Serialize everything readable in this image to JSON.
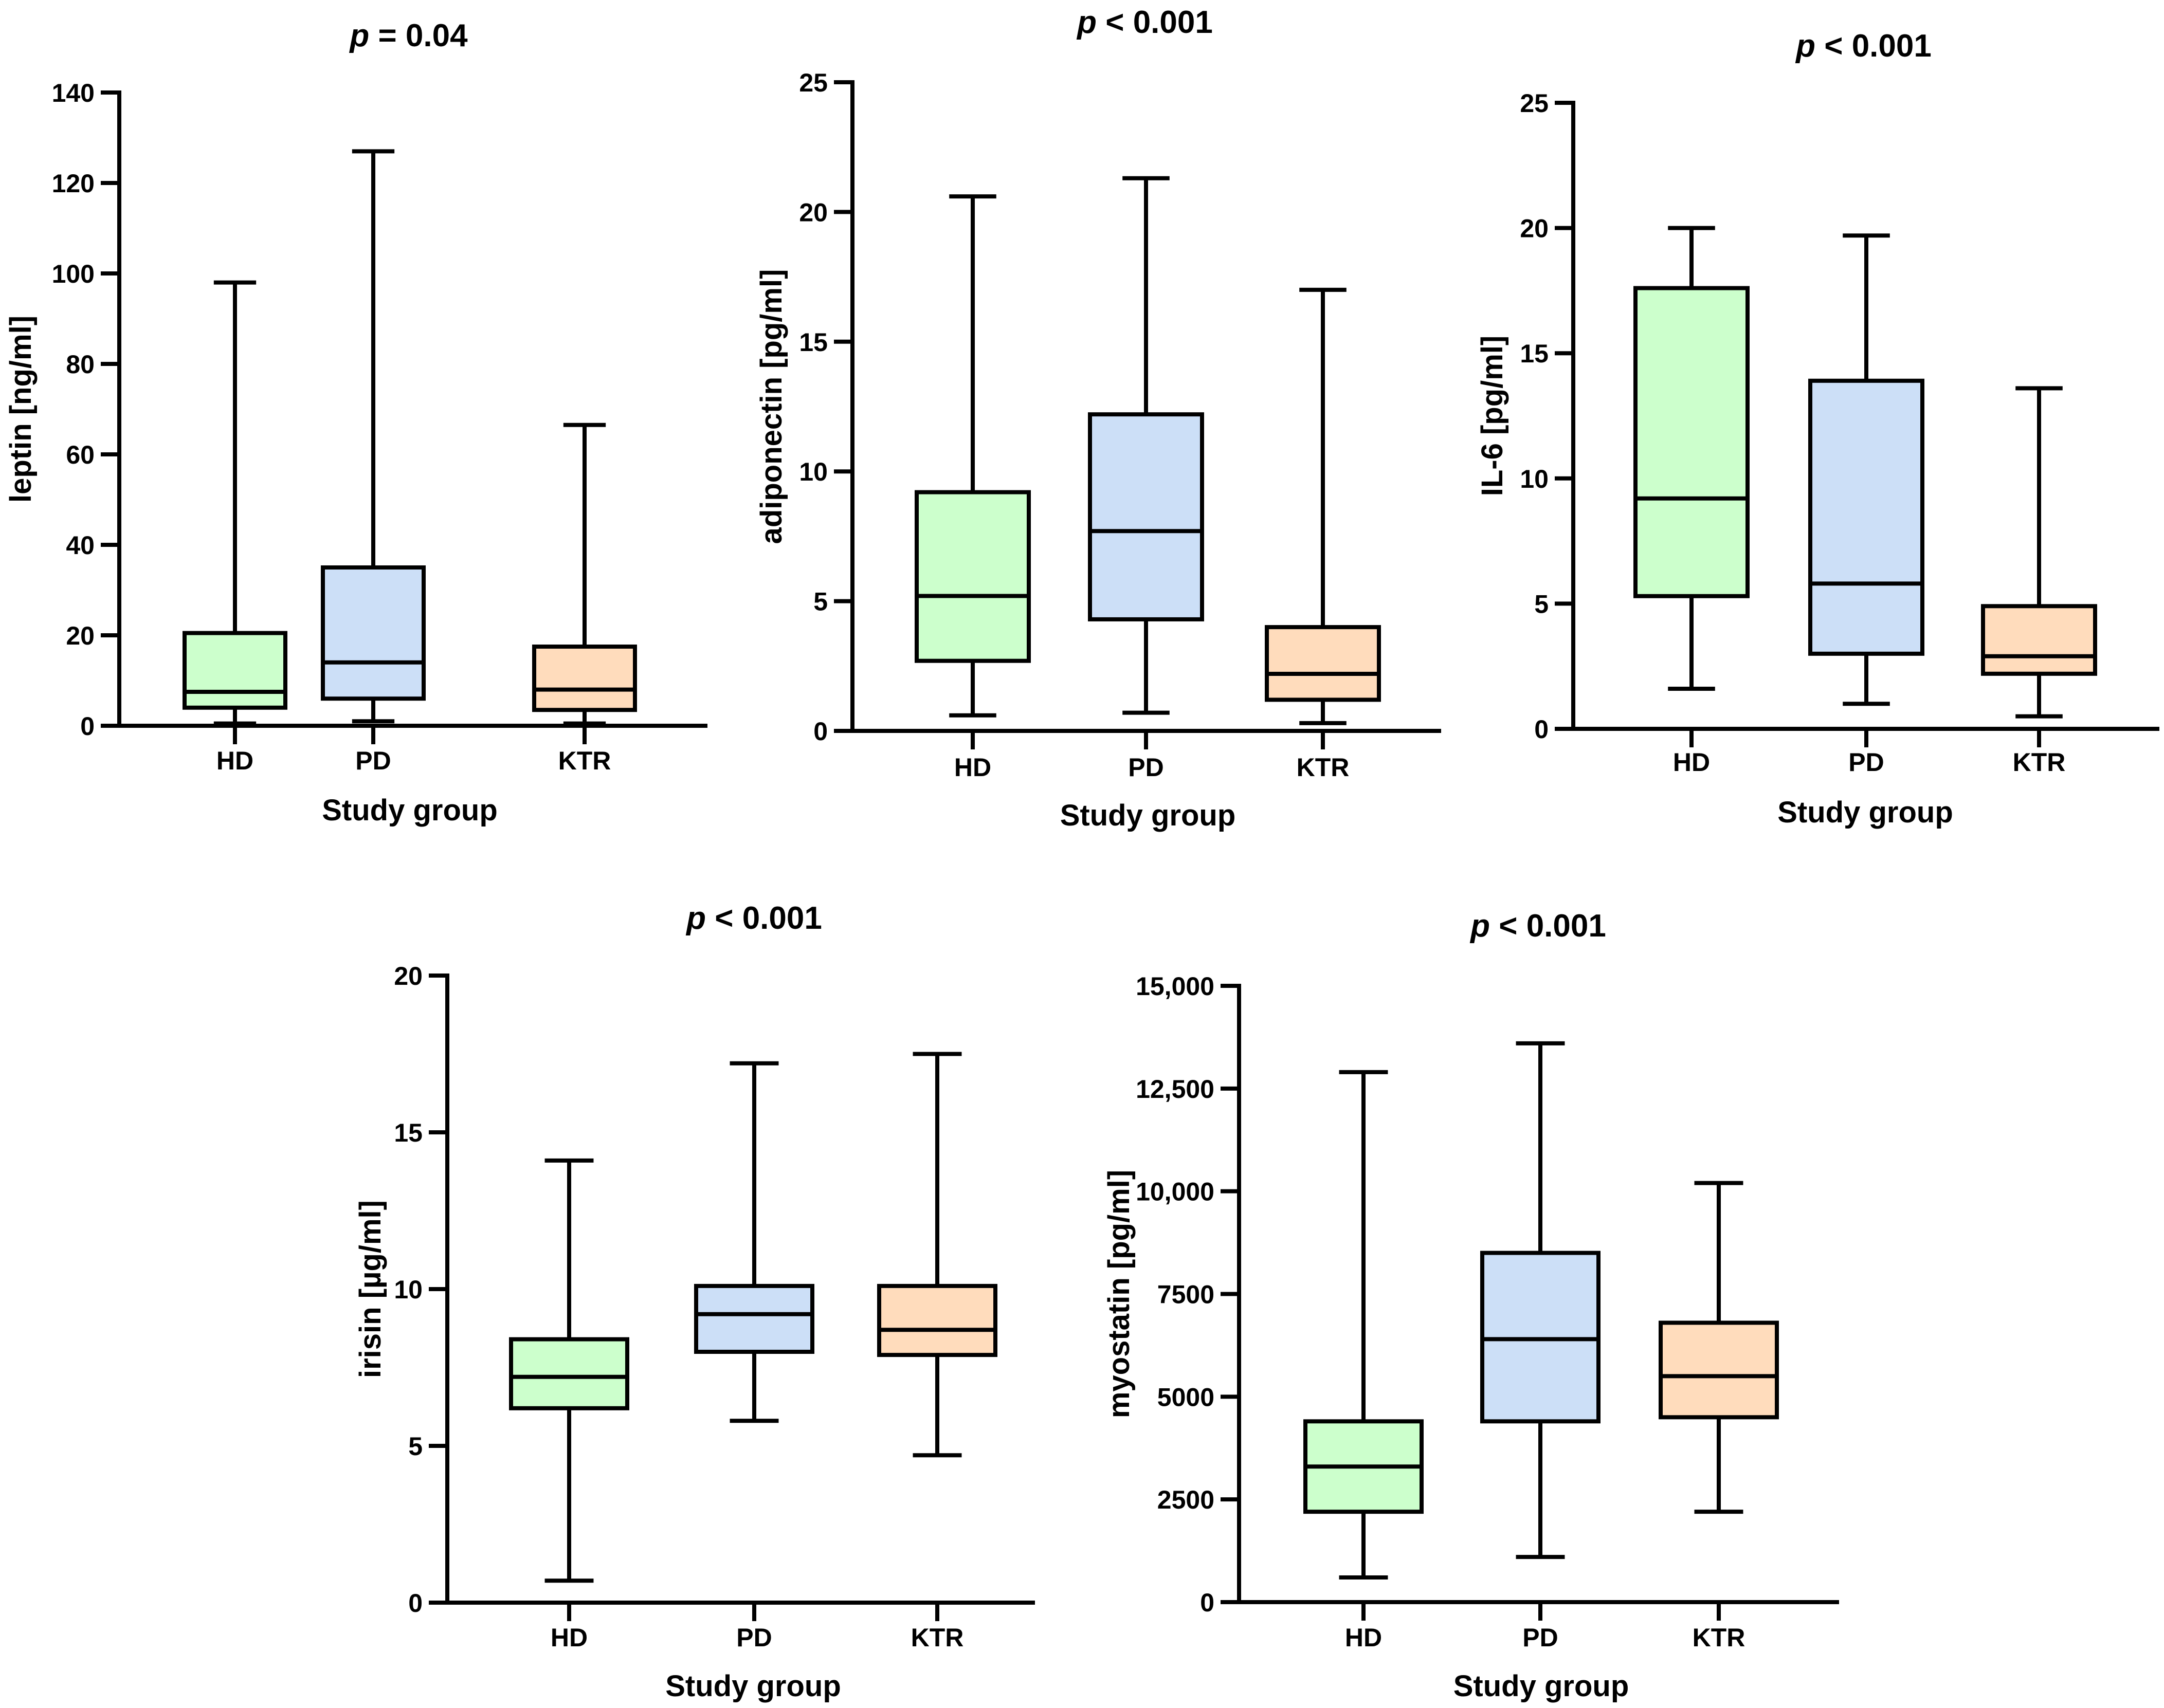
{
  "colors": {
    "HD": "#ccffcc",
    "PD": "#ccdff7",
    "KTR": "#ffdcbc",
    "stroke": "#000000"
  },
  "chart_data": [
    {
      "type": "box",
      "title_prefix": "p",
      "title_rest": " = 0.04",
      "xlabel": "Study group",
      "ylabel": "leptin [ng/ml]",
      "ylim": [
        0,
        140
      ],
      "yticks": [
        0,
        20,
        40,
        60,
        80,
        100,
        120,
        140
      ],
      "ytick_labels": [
        "0",
        "20",
        "40",
        "60",
        "80",
        "100",
        "120",
        "140"
      ],
      "categories": [
        "HD",
        "PD",
        "KTR"
      ],
      "boxes": [
        {
          "min": 0.5,
          "q1": 4,
          "median": 7.5,
          "q3": 20.5,
          "max": 98
        },
        {
          "min": 1,
          "q1": 6,
          "median": 14,
          "q3": 35,
          "max": 127
        },
        {
          "min": 0.5,
          "q1": 3.5,
          "median": 8,
          "q3": 17.5,
          "max": 66.5
        }
      ]
    },
    {
      "type": "box",
      "title_prefix": "p",
      "title_rest": " < 0.001",
      "xlabel": "Study group",
      "ylabel": "adiponectin [pg/ml]",
      "ylim": [
        0,
        25
      ],
      "yticks": [
        0,
        5,
        10,
        15,
        20,
        25
      ],
      "ytick_labels": [
        "0",
        "5",
        "10",
        "15",
        "20",
        "25"
      ],
      "categories": [
        "HD",
        "PD",
        "KTR"
      ],
      "boxes": [
        {
          "min": 0.6,
          "q1": 2.7,
          "median": 5.2,
          "q3": 9.2,
          "max": 20.6
        },
        {
          "min": 0.7,
          "q1": 4.3,
          "median": 7.7,
          "q3": 12.2,
          "max": 21.3
        },
        {
          "min": 0.3,
          "q1": 1.2,
          "median": 2.2,
          "q3": 4.0,
          "max": 17.0
        }
      ]
    },
    {
      "type": "box",
      "title_prefix": "p",
      "title_rest": " < 0.001",
      "xlabel": "Study group",
      "ylabel": "IL-6 [pg/ml]",
      "ylim": [
        0,
        25
      ],
      "yticks": [
        0,
        5,
        10,
        15,
        20,
        25
      ],
      "ytick_labels": [
        "0",
        "5",
        "10",
        "15",
        "20",
        "25"
      ],
      "categories": [
        "HD",
        "PD",
        "KTR"
      ],
      "boxes": [
        {
          "min": 1.6,
          "q1": 5.3,
          "median": 9.2,
          "q3": 17.6,
          "max": 20.0
        },
        {
          "min": 1.0,
          "q1": 3.0,
          "median": 5.8,
          "q3": 13.9,
          "max": 19.7
        },
        {
          "min": 0.5,
          "q1": 2.2,
          "median": 2.9,
          "q3": 4.9,
          "max": 13.6
        }
      ]
    },
    {
      "type": "box",
      "title_prefix": "p",
      "title_rest": " < 0.001",
      "xlabel": "Study group",
      "ylabel": "irisin [µg/ml]",
      "ylim": [
        0,
        20
      ],
      "yticks": [
        0,
        5,
        10,
        15,
        20
      ],
      "ytick_labels": [
        "0",
        "5",
        "10",
        "15",
        "20"
      ],
      "categories": [
        "HD",
        "PD",
        "KTR"
      ],
      "boxes": [
        {
          "min": 0.7,
          "q1": 6.2,
          "median": 7.2,
          "q3": 8.4,
          "max": 14.1
        },
        {
          "min": 5.8,
          "q1": 8.0,
          "median": 9.2,
          "q3": 10.1,
          "max": 17.2
        },
        {
          "min": 4.7,
          "q1": 7.9,
          "median": 8.7,
          "q3": 10.1,
          "max": 17.5
        }
      ]
    },
    {
      "type": "box",
      "title_prefix": "p",
      "title_rest": " < 0.001",
      "xlabel": "Study group",
      "ylabel": "myostatin [pg/ml]",
      "ylim": [
        0,
        15000
      ],
      "yticks": [
        0,
        2500,
        5000,
        7500,
        10000,
        12500,
        15000
      ],
      "ytick_labels": [
        "0",
        "2500",
        "5000",
        "7500",
        "10,000",
        "12,500",
        "15,000"
      ],
      "categories": [
        "HD",
        "PD",
        "KTR"
      ],
      "boxes": [
        {
          "min": 600,
          "q1": 2200,
          "median": 3300,
          "q3": 4400,
          "max": 12900
        },
        {
          "min": 1100,
          "q1": 4400,
          "median": 6400,
          "q3": 8500,
          "max": 13600
        },
        {
          "min": 2200,
          "q1": 4500,
          "median": 5500,
          "q3": 6800,
          "max": 10200
        }
      ]
    }
  ]
}
